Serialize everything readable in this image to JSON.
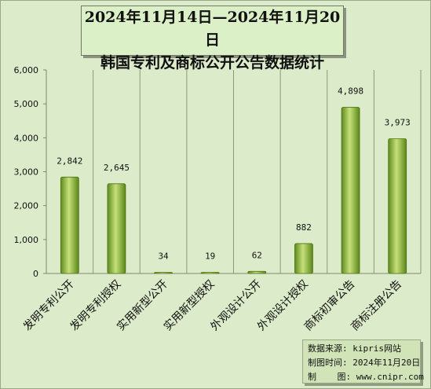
{
  "title": {
    "line1": "2024年11月14日—2024年11月20日",
    "line2": "韩国专利及商标公开公告数据统计"
  },
  "source": {
    "line1": "数据来源: kipris网站",
    "line2": "制图时间: 2024年11月20日",
    "line3": "制    图: www.cnipr.com"
  },
  "colors": {
    "background": "#dcebc9",
    "plot_background": "#dcebc9",
    "bar_light": "#c6e07a",
    "bar_dark": "#5e8a1e"
  },
  "chart_data": {
    "type": "bar",
    "categories": [
      "发明专利公开",
      "发明专利授权",
      "实用新型公开",
      "实用新型授权",
      "外观设计公开",
      "外观设计授权",
      "商标初审公告",
      "商标注册公告"
    ],
    "values": [
      2842,
      2645,
      34,
      19,
      62,
      882,
      4898,
      3973
    ],
    "value_labels": [
      "2,842",
      "2,645",
      "34",
      "19",
      "62",
      "882",
      "4,898",
      "3,973"
    ],
    "yticks": [
      "0",
      "1,000",
      "2,000",
      "3,000",
      "4,000",
      "5,000",
      "6,000"
    ],
    "ylim": [
      0,
      6000
    ],
    "grid": "vertical",
    "legend": "none"
  }
}
